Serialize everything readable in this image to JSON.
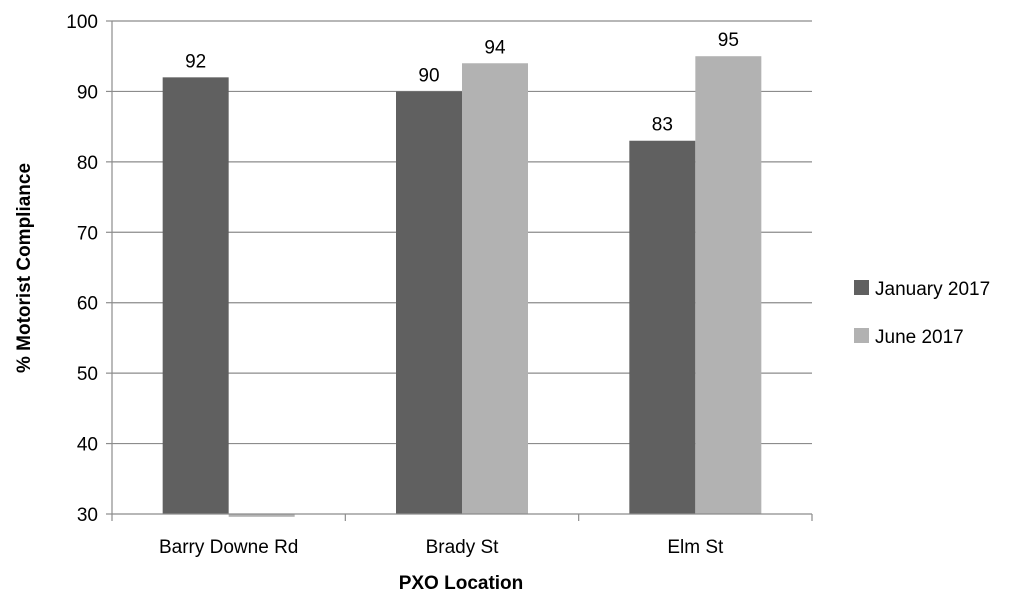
{
  "chart_data": {
    "type": "bar",
    "categories": [
      "Barry Downe Rd",
      "Brady St",
      "Elm St"
    ],
    "series": [
      {
        "name": "January 2017",
        "values": [
          92,
          90,
          83
        ],
        "color": "#606060"
      },
      {
        "name": "June 2017",
        "values": [
          29.6,
          94,
          95
        ],
        "color": "#b2b2b2"
      }
    ],
    "data_labels": [
      [
        "92",
        "90",
        "83"
      ],
      [
        "",
        "94",
        "95"
      ]
    ],
    "xlabel": "PXO Location",
    "ylabel": "% Motorist Compliance",
    "ylim": [
      30,
      100
    ],
    "yticks": [
      30,
      40,
      50,
      60,
      70,
      80,
      90,
      100
    ],
    "grid": true,
    "legend_position": "right"
  }
}
